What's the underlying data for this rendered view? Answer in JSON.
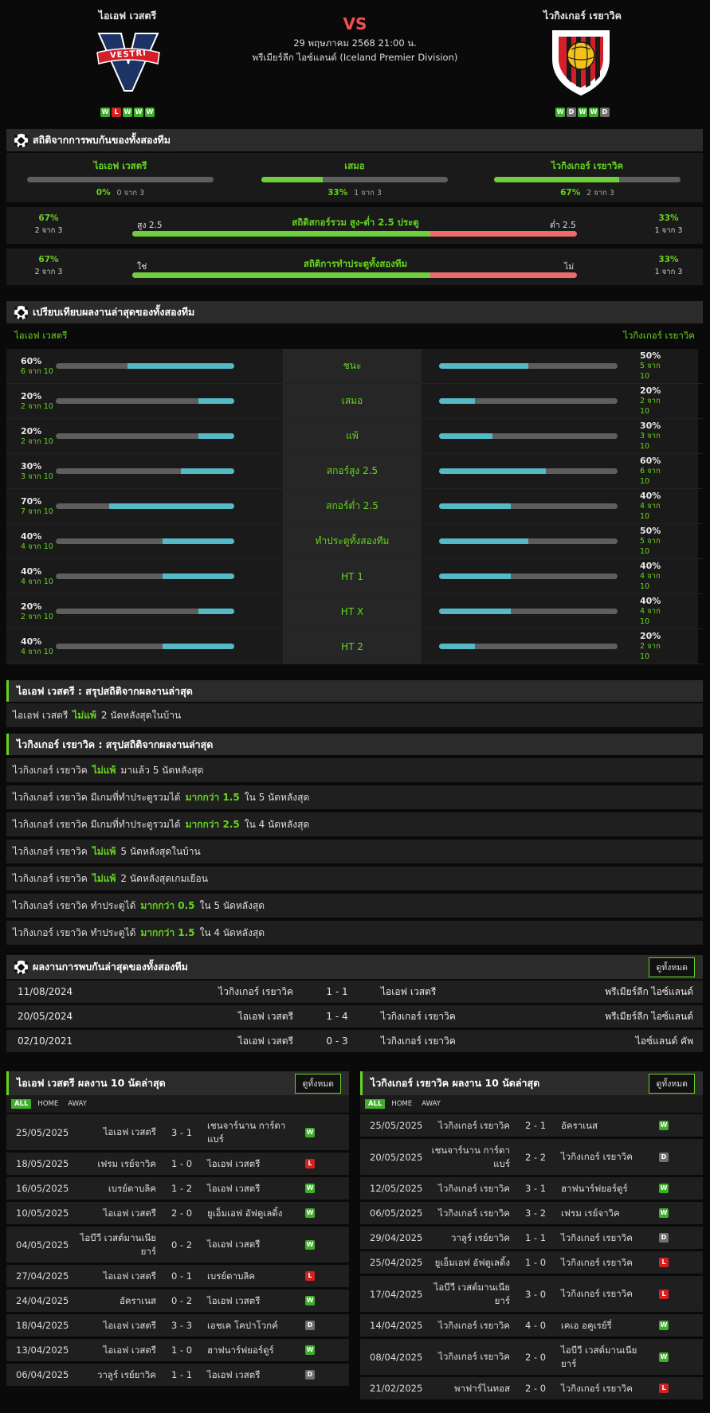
{
  "header": {
    "home": "ไอเอฟ เวสตรี",
    "away": "ไวกิงเกอร์ เรยาวิค",
    "vs": "VS",
    "date": "29 พฤษภาคม 2568 21:00 น.",
    "league": "พรีเมียร์ลีก ไอซ์แลนด์ (Iceland Premier Division)",
    "home_logo_text": "VESTRI",
    "home_form": [
      "W",
      "L",
      "W",
      "W",
      "W"
    ],
    "away_form": [
      "W",
      "D",
      "W",
      "W",
      "D"
    ]
  },
  "h2h_stats": {
    "title": "สถิติจากการพบกันของทั้งสองทีม",
    "home": {
      "label": "ไอเอฟ เวสตรี",
      "pct": "0%",
      "sub": "0 จาก 3",
      "value": 0
    },
    "draw": {
      "label": "เสมอ",
      "pct": "33%",
      "sub": "1 จาก 3",
      "value": 33
    },
    "away": {
      "label": "ไวกิงเกอร์ เรยาวิค",
      "pct": "67%",
      "sub": "2 จาก 3",
      "value": 67
    },
    "ou": {
      "title": "สถิติสกอร์รวม สูง-ต่ำ 2.5 ประตู",
      "left_pct": "67%",
      "left_sub": "2 จาก 3",
      "right_pct": "33%",
      "right_sub": "1 จาก 3",
      "left_label": "สูง 2.5",
      "right_label": "ต่ำ 2.5",
      "value": 67
    },
    "btts": {
      "title": "สถิติการทำประตูทั้งสองทีม",
      "left_pct": "67%",
      "left_sub": "2 จาก 3",
      "right_pct": "33%",
      "right_sub": "1 จาก 3",
      "left_label": "ใช่",
      "right_label": "ไม่",
      "value": 67
    }
  },
  "compare": {
    "title": "เปรียบเทียบผลงานล่าสุดของทั้งสองทีม",
    "home": "ไอเอฟ เวสตรี",
    "away": "ไวกิงเกอร์ เรยาวิค",
    "rows": [
      {
        "label": "ชนะ",
        "hp": "60%",
        "hs": "6 จาก 10",
        "hv": 60,
        "ap": "50%",
        "as": "5 จาก 10",
        "av": 50
      },
      {
        "label": "เสมอ",
        "hp": "20%",
        "hs": "2 จาก 10",
        "hv": 20,
        "ap": "20%",
        "as": "2 จาก 10",
        "av": 20
      },
      {
        "label": "แพ้",
        "hp": "20%",
        "hs": "2 จาก 10",
        "hv": 20,
        "ap": "30%",
        "as": "3 จาก 10",
        "av": 30
      },
      {
        "label": "สกอร์สูง 2.5",
        "hp": "30%",
        "hs": "3 จาก 10",
        "hv": 30,
        "ap": "60%",
        "as": "6 จาก 10",
        "av": 60
      },
      {
        "label": "สกอร์ต่ำ 2.5",
        "hp": "70%",
        "hs": "7 จาก 10",
        "hv": 70,
        "ap": "40%",
        "as": "4 จาก 10",
        "av": 40
      },
      {
        "label": "ทำประตูทั้งสองทีม",
        "hp": "40%",
        "hs": "4 จาก 10",
        "hv": 40,
        "ap": "50%",
        "as": "5 จาก 10",
        "av": 50
      },
      {
        "label": "HT 1",
        "hp": "40%",
        "hs": "4 จาก 10",
        "hv": 40,
        "ap": "40%",
        "as": "4 จาก 10",
        "av": 40
      },
      {
        "label": "HT X",
        "hp": "20%",
        "hs": "2 จาก 10",
        "hv": 20,
        "ap": "40%",
        "as": "4 จาก 10",
        "av": 40
      },
      {
        "label": "HT 2",
        "hp": "40%",
        "hs": "4 จาก 10",
        "hv": 40,
        "ap": "20%",
        "as": "2 จาก 10",
        "av": 20
      }
    ]
  },
  "summary_home": {
    "title": "ไอเอฟ เวสตรี : สรุปสถิติจากผลงานล่าสุด",
    "rows": [
      {
        "a": "ไอเอฟ เวสตรี",
        "b": "ไม่แพ้",
        "c": "2 นัดหลังสุดในบ้าน"
      }
    ]
  },
  "summary_away": {
    "title": "ไวกิงเกอร์ เรยาวิค : สรุปสถิติจากผลงานล่าสุด",
    "rows": [
      {
        "a": "ไวกิงเกอร์ เรยาวิค",
        "b": "ไม่แพ้",
        "c": "มาแล้ว 5 นัดหลังสุด"
      },
      {
        "a": "ไวกิงเกอร์ เรยาวิค  มีเกมที่ทำประตูรวมได้",
        "b": "มากกว่า  1.5",
        "c": "ใน 5 นัดหลังสุด"
      },
      {
        "a": "ไวกิงเกอร์ เรยาวิค  มีเกมที่ทำประตูรวมได้",
        "b": "มากกว่า  2.5",
        "c": "ใน 4 นัดหลังสุด"
      },
      {
        "a": "ไวกิงเกอร์ เรยาวิค",
        "b": "ไม่แพ้",
        "c": "5 นัดหลังสุดในบ้าน"
      },
      {
        "a": "ไวกิงเกอร์ เรยาวิค",
        "b": "ไม่แพ้",
        "c": "2 นัดหลังสุดเกมเยือน"
      },
      {
        "a": "ไวกิงเกอร์ เรยาวิค  ทำประตูได้",
        "b": "มากกว่า  0.5",
        "c": "ใน 5 นัดหลังสุด"
      },
      {
        "a": "ไวกิงเกอร์ เรยาวิค  ทำประตูได้",
        "b": "มากกว่า  1.5",
        "c": "ใน 4 นัดหลังสุด"
      }
    ]
  },
  "h2h": {
    "title": "ผลงานการพบกันล่าสุดของทั้งสองทีม",
    "view_all": "ดูทั้งหมด",
    "rows": [
      {
        "date": "11/08/2024",
        "home": "ไวกิงเกอร์ เรยาวิค",
        "score": "1 - 1",
        "away": "ไอเอฟ เวสตรี",
        "comp": "พรีเมียร์ลีก ไอซ์แลนด์"
      },
      {
        "date": "20/05/2024",
        "home": "ไอเอฟ เวสตรี",
        "score": "1 - 4",
        "away": "ไวกิงเกอร์ เรยาวิค",
        "comp": "พรีเมียร์ลีก ไอซ์แลนด์"
      },
      {
        "date": "02/10/2021",
        "home": "ไอเอฟ เวสตรี",
        "score": "0 - 3",
        "away": "ไวกิงเกอร์ เรยาวิค",
        "comp": "ไอซ์แลนด์ คัพ"
      }
    ]
  },
  "tabs": {
    "all": "ALL",
    "home": "HOME",
    "away": "AWAY"
  },
  "last10_home": {
    "title": "ไอเอฟ เวสตรี ผลงาน 10 นัดล่าสุด",
    "view_all": "ดูทั้งหมด",
    "rows": [
      {
        "date": "25/05/2025",
        "home": "ไอเอฟ เวสตรี",
        "score": "3 - 1",
        "away": "เชนจาร์นาน การ์ดาแบร์",
        "res": "W",
        "tall": true
      },
      {
        "date": "18/05/2025",
        "home": "เฟรม เรย์จาวิค",
        "score": "1 - 0",
        "away": "ไอเอฟ เวสตรี",
        "res": "L"
      },
      {
        "date": "16/05/2025",
        "home": "เบรย์ดาบลิค",
        "score": "1 - 2",
        "away": "ไอเอฟ เวสตรี",
        "res": "W"
      },
      {
        "date": "10/05/2025",
        "home": "ไอเอฟ เวสตรี",
        "score": "2 - 0",
        "away": "ยูเอ็มเอฟ อัฟตูเลดิ้ง",
        "res": "W"
      },
      {
        "date": "04/05/2025",
        "home": "ไอบีวี เวสต์มานเนียยาร์",
        "score": "0 - 2",
        "away": "ไอเอฟ เวสตรี",
        "res": "W",
        "tall": true
      },
      {
        "date": "27/04/2025",
        "home": "ไอเอฟ เวสตรี",
        "score": "0 - 1",
        "away": "เบรย์ดาบลิค",
        "res": "L"
      },
      {
        "date": "24/04/2025",
        "home": "อัคราเนส",
        "score": "0 - 2",
        "away": "ไอเอฟ เวสตรี",
        "res": "W"
      },
      {
        "date": "18/04/2025",
        "home": "ไอเอฟ เวสตรี",
        "score": "3 - 3",
        "away": "เอชเค โคปาโวกค์",
        "res": "D"
      },
      {
        "date": "13/04/2025",
        "home": "ไอเอฟ เวสตรี",
        "score": "1 - 0",
        "away": "ฮาฟนาร์ฟยอร์ดูร์",
        "res": "W"
      },
      {
        "date": "06/04/2025",
        "home": "วาลูร์ เรย์ยาวิค",
        "score": "1 - 1",
        "away": "ไอเอฟ เวสตรี",
        "res": "D"
      }
    ]
  },
  "last10_away": {
    "title": "ไวกิงเกอร์ เรยาวิค ผลงาน 10 นัดล่าสุด",
    "view_all": "ดูทั้งหมด",
    "rows": [
      {
        "date": "25/05/2025",
        "home": "ไวกิงเกอร์ เรยาวิค",
        "score": "2 - 1",
        "away": "อัคราเนส",
        "res": "W"
      },
      {
        "date": "20/05/2025",
        "home": "เชนจาร์นาน การ์ดาแบร์",
        "score": "2 - 2",
        "away": "ไวกิงเกอร์ เรยาวิค",
        "res": "D",
        "tall": true
      },
      {
        "date": "12/05/2025",
        "home": "ไวกิงเกอร์ เรยาวิค",
        "score": "3 - 1",
        "away": "ฮาฟนาร์ฟยอร์ดูร์",
        "res": "W"
      },
      {
        "date": "06/05/2025",
        "home": "ไวกิงเกอร์ เรยาวิค",
        "score": "3 - 2",
        "away": "เฟรม เรย์จาวิค",
        "res": "W"
      },
      {
        "date": "29/04/2025",
        "home": "วาลูร์ เรย์ยาวิค",
        "score": "1 - 1",
        "away": "ไวกิงเกอร์ เรยาวิค",
        "res": "D"
      },
      {
        "date": "25/04/2025",
        "home": "ยูเอ็มเอฟ อัฟตูเลดิ้ง",
        "score": "1 - 0",
        "away": "ไวกิงเกอร์ เรยาวิค",
        "res": "L"
      },
      {
        "date": "17/04/2025",
        "home": "ไอบีวี เวสต์มานเนียยาร์",
        "score": "3 - 0",
        "away": "ไวกิงเกอร์ เรยาวิค",
        "res": "L",
        "tall": true
      },
      {
        "date": "14/04/2025",
        "home": "ไวกิงเกอร์ เรยาวิค",
        "score": "4 - 0",
        "away": "เคเอ อคูเรย์รี่",
        "res": "W"
      },
      {
        "date": "08/04/2025",
        "home": "ไวกิงเกอร์ เรยาวิค",
        "score": "2 - 0",
        "away": "ไอบีวี เวสต์มานเนียยาร์",
        "res": "W",
        "tall": true
      },
      {
        "date": "21/02/2025",
        "home": "พาฟาร์ไนทอส",
        "score": "2 - 0",
        "away": "ไวกิงเกอร์ เรยาวิค",
        "res": "L"
      }
    ]
  }
}
